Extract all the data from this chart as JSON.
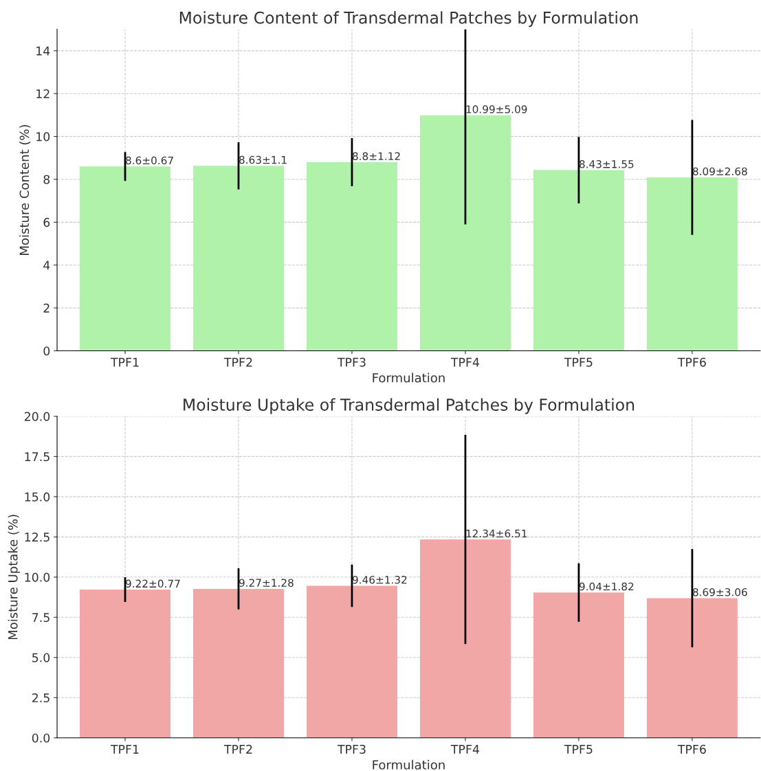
{
  "chart_data": [
    {
      "type": "bar",
      "title": "Moisture Content of Transdermal Patches by Formulation",
      "xlabel": "Formulation",
      "ylabel": "Moisture Content (%)",
      "categories": [
        "TPF1",
        "TPF2",
        "TPF3",
        "TPF4",
        "TPF5",
        "TPF6"
      ],
      "values": [
        8.6,
        8.63,
        8.8,
        10.99,
        8.43,
        8.09
      ],
      "errors": [
        0.67,
        1.1,
        1.12,
        5.09,
        1.55,
        2.68
      ],
      "value_labels": [
        "8.6±0.67",
        "8.63±1.1",
        "8.8±1.12",
        "10.99±5.09",
        "8.43±1.55",
        "8.09±2.68"
      ],
      "color": "#b0f2aa",
      "ylim": [
        0,
        15
      ],
      "yticks": [
        0,
        2,
        4,
        6,
        8,
        10,
        12,
        14
      ],
      "grid": true,
      "legend": false
    },
    {
      "type": "bar",
      "title": "Moisture Uptake of Transdermal Patches by Formulation",
      "xlabel": "Formulation",
      "ylabel": "Moisture Uptake (%)",
      "categories": [
        "TPF1",
        "TPF2",
        "TPF3",
        "TPF4",
        "TPF5",
        "TPF6"
      ],
      "values": [
        9.22,
        9.27,
        9.46,
        12.34,
        9.04,
        8.69
      ],
      "errors": [
        0.77,
        1.28,
        1.32,
        6.51,
        1.82,
        3.06
      ],
      "value_labels": [
        "9.22±0.77",
        "9.27±1.28",
        "9.46±1.32",
        "12.34±6.51",
        "9.04±1.82",
        "8.69±3.06"
      ],
      "color": "#f2a7a7",
      "ylim": [
        0,
        20
      ],
      "yticks": [
        {
          "value": 0,
          "label": "0.0"
        },
        {
          "value": 2.5,
          "label": "2.5"
        },
        {
          "value": 5,
          "label": "5.0"
        },
        {
          "value": 7.5,
          "label": "7.5"
        },
        {
          "value": 10,
          "label": "10.0"
        },
        {
          "value": 12.5,
          "label": "12.5"
        },
        {
          "value": 15,
          "label": "15.0"
        },
        {
          "value": 17.5,
          "label": "17.5"
        },
        {
          "value": 20,
          "label": "20.0"
        }
      ],
      "grid": true,
      "legend": false
    }
  ]
}
